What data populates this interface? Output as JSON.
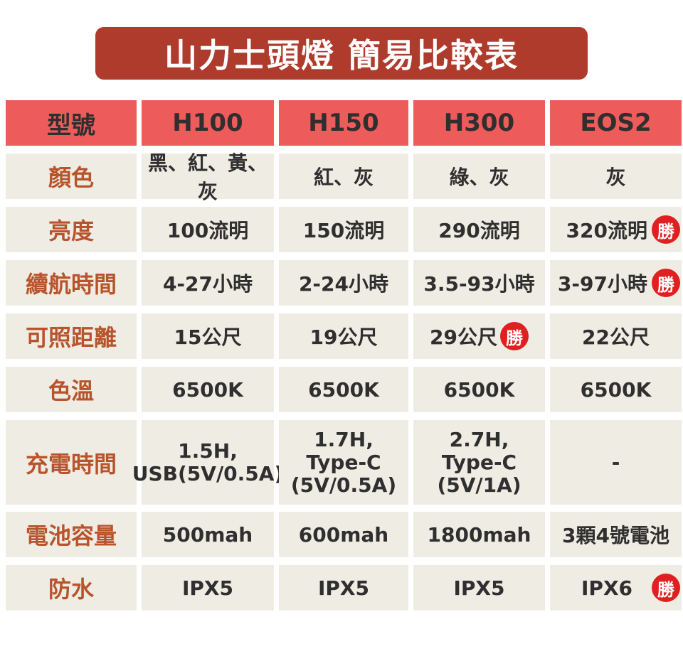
{
  "title": "山力士頭燈 簡易比較表",
  "header": [
    "型號",
    "H100",
    "H150",
    "H300",
    "EOS2"
  ],
  "badge": "勝",
  "rows": [
    {
      "label": "顏色",
      "values": [
        "黑、紅、黃、灰",
        "紅、灰",
        "綠、灰",
        "灰"
      ]
    },
    {
      "label": "亮度",
      "values": [
        "100流明",
        "150流明",
        "290流明",
        "320流明"
      ]
    },
    {
      "label": "續航時間",
      "values": [
        "4-27小時",
        "2-24小時",
        "3.5-93小時",
        "3-97小時"
      ]
    },
    {
      "label": "可照距離",
      "values": [
        "15公尺",
        "19公尺",
        "29公尺",
        "22公尺"
      ]
    },
    {
      "label": "色溫",
      "values": [
        "6500K",
        "6500K",
        "6500K",
        "6500K"
      ]
    },
    {
      "label": "充電時間",
      "values": [
        [
          "1.5H,",
          "USB(5V/0.5A)"
        ],
        [
          "1.7H,",
          "Type-C",
          "(5V/0.5A)"
        ],
        [
          "2.7H,",
          "Type-C",
          "(5V/1A)"
        ],
        [
          "-"
        ]
      ]
    },
    {
      "label": "電池容量",
      "values": [
        "500mah",
        "600mah",
        "1800mah",
        "3顆4號電池"
      ]
    },
    {
      "label": "防水",
      "values": [
        "IPX5",
        "IPX5",
        "IPX5",
        "IPX6"
      ]
    }
  ]
}
